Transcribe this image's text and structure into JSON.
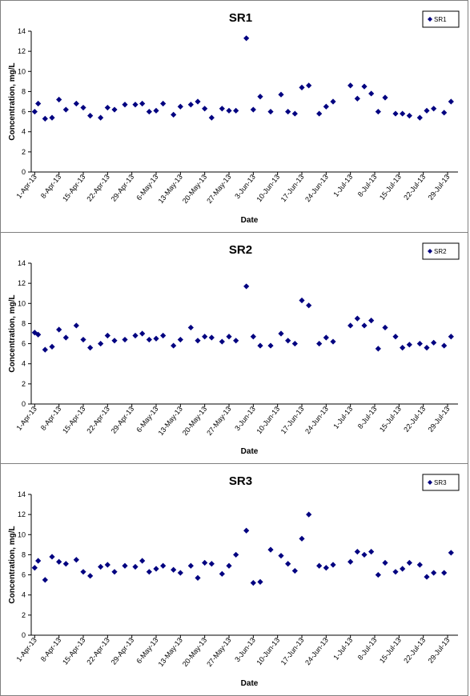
{
  "chart_data": [
    {
      "type": "scatter",
      "title": "SR1",
      "xlabel": "Date",
      "ylabel": "Concentration, mg/L",
      "ylim": [
        0,
        14
      ],
      "yticks": [
        0,
        2,
        4,
        6,
        8,
        10,
        12,
        14
      ],
      "x_tick_labels": [
        "1-Apr-13",
        "8-Apr-13",
        "15-Apr-13",
        "22-Apr-13",
        "29-Apr-13",
        "6-May-13",
        "13-May-13",
        "20-May-13",
        "27-May-13",
        "3-Jun-13",
        "10-Jun-13",
        "17-Jun-13",
        "24-Jun-13",
        "1-Jul-13",
        "8-Jul-13",
        "15-Jul-13",
        "22-Jul-13",
        "29-Jul-13"
      ],
      "grid": false,
      "legend_position": "top-right",
      "marker_color": "#000080",
      "series": [
        {
          "name": "SR1",
          "points": [
            [
              "2013-04-01",
              6.0
            ],
            [
              "2013-04-02",
              6.8
            ],
            [
              "2013-04-04",
              5.3
            ],
            [
              "2013-04-06",
              5.4
            ],
            [
              "2013-04-08",
              7.2
            ],
            [
              "2013-04-10",
              6.2
            ],
            [
              "2013-04-13",
              6.8
            ],
            [
              "2013-04-15",
              6.4
            ],
            [
              "2013-04-17",
              5.6
            ],
            [
              "2013-04-20",
              5.4
            ],
            [
              "2013-04-22",
              6.4
            ],
            [
              "2013-04-24",
              6.2
            ],
            [
              "2013-04-27",
              6.7
            ],
            [
              "2013-04-30",
              6.7
            ],
            [
              "2013-05-02",
              6.8
            ],
            [
              "2013-05-04",
              6.0
            ],
            [
              "2013-05-06",
              6.1
            ],
            [
              "2013-05-08",
              6.8
            ],
            [
              "2013-05-11",
              5.7
            ],
            [
              "2013-05-13",
              6.5
            ],
            [
              "2013-05-16",
              6.7
            ],
            [
              "2013-05-18",
              7.0
            ],
            [
              "2013-05-20",
              6.3
            ],
            [
              "2013-05-22",
              5.4
            ],
            [
              "2013-05-25",
              6.3
            ],
            [
              "2013-05-27",
              6.1
            ],
            [
              "2013-05-29",
              6.1
            ],
            [
              "2013-06-01",
              13.3
            ],
            [
              "2013-06-03",
              6.2
            ],
            [
              "2013-06-05",
              7.5
            ],
            [
              "2013-06-08",
              6.0
            ],
            [
              "2013-06-11",
              7.7
            ],
            [
              "2013-06-13",
              6.0
            ],
            [
              "2013-06-15",
              5.8
            ],
            [
              "2013-06-17",
              8.4
            ],
            [
              "2013-06-19",
              8.6
            ],
            [
              "2013-06-22",
              5.8
            ],
            [
              "2013-06-24",
              6.5
            ],
            [
              "2013-06-26",
              7.0
            ],
            [
              "2013-07-01",
              8.6
            ],
            [
              "2013-07-03",
              7.3
            ],
            [
              "2013-07-05",
              8.5
            ],
            [
              "2013-07-07",
              7.8
            ],
            [
              "2013-07-09",
              6.0
            ],
            [
              "2013-07-11",
              7.4
            ],
            [
              "2013-07-14",
              5.8
            ],
            [
              "2013-07-16",
              5.8
            ],
            [
              "2013-07-18",
              5.6
            ],
            [
              "2013-07-21",
              5.4
            ],
            [
              "2013-07-23",
              6.1
            ],
            [
              "2013-07-25",
              6.3
            ],
            [
              "2013-07-28",
              5.9
            ],
            [
              "2013-07-30",
              7.0
            ]
          ]
        }
      ]
    },
    {
      "type": "scatter",
      "title": "SR2",
      "xlabel": "Date",
      "ylabel": "Concentration, mg/L",
      "ylim": [
        0,
        14
      ],
      "yticks": [
        0,
        2,
        4,
        6,
        8,
        10,
        12,
        14
      ],
      "x_tick_labels": [
        "1-Apr-13",
        "8-Apr-13",
        "15-Apr-13",
        "22-Apr-13",
        "29-Apr-13",
        "6-May-13",
        "13-May-13",
        "20-May-13",
        "27-May-13",
        "3-Jun-13",
        "10-Jun-13",
        "17-Jun-13",
        "24-Jun-13",
        "1-Jul-13",
        "8-Jul-13",
        "15-Jul-13",
        "22-Jul-13",
        "29-Jul-13"
      ],
      "grid": false,
      "legend_position": "top-right",
      "marker_color": "#000080",
      "series": [
        {
          "name": "SR2",
          "points": [
            [
              "2013-04-01",
              7.1
            ],
            [
              "2013-04-02",
              6.9
            ],
            [
              "2013-04-04",
              5.4
            ],
            [
              "2013-04-06",
              5.7
            ],
            [
              "2013-04-08",
              7.4
            ],
            [
              "2013-04-10",
              6.6
            ],
            [
              "2013-04-13",
              7.8
            ],
            [
              "2013-04-15",
              6.4
            ],
            [
              "2013-04-17",
              5.6
            ],
            [
              "2013-04-20",
              6.0
            ],
            [
              "2013-04-22",
              6.8
            ],
            [
              "2013-04-24",
              6.3
            ],
            [
              "2013-04-27",
              6.4
            ],
            [
              "2013-04-30",
              6.8
            ],
            [
              "2013-05-02",
              7.0
            ],
            [
              "2013-05-04",
              6.4
            ],
            [
              "2013-05-06",
              6.5
            ],
            [
              "2013-05-08",
              6.8
            ],
            [
              "2013-05-11",
              5.8
            ],
            [
              "2013-05-13",
              6.4
            ],
            [
              "2013-05-16",
              7.6
            ],
            [
              "2013-05-18",
              6.3
            ],
            [
              "2013-05-20",
              6.7
            ],
            [
              "2013-05-22",
              6.6
            ],
            [
              "2013-05-25",
              6.2
            ],
            [
              "2013-05-27",
              6.7
            ],
            [
              "2013-05-29",
              6.3
            ],
            [
              "2013-06-01",
              11.7
            ],
            [
              "2013-06-03",
              6.7
            ],
            [
              "2013-06-05",
              5.8
            ],
            [
              "2013-06-08",
              5.8
            ],
            [
              "2013-06-11",
              7.0
            ],
            [
              "2013-06-13",
              6.3
            ],
            [
              "2013-06-15",
              6.0
            ],
            [
              "2013-06-17",
              10.3
            ],
            [
              "2013-06-19",
              9.8
            ],
            [
              "2013-06-22",
              6.0
            ],
            [
              "2013-06-24",
              6.6
            ],
            [
              "2013-06-26",
              6.2
            ],
            [
              "2013-07-01",
              7.8
            ],
            [
              "2013-07-03",
              8.5
            ],
            [
              "2013-07-05",
              7.8
            ],
            [
              "2013-07-07",
              8.3
            ],
            [
              "2013-07-09",
              5.5
            ],
            [
              "2013-07-11",
              7.6
            ],
            [
              "2013-07-14",
              6.7
            ],
            [
              "2013-07-16",
              5.6
            ],
            [
              "2013-07-18",
              5.9
            ],
            [
              "2013-07-21",
              6.0
            ],
            [
              "2013-07-23",
              5.6
            ],
            [
              "2013-07-25",
              6.1
            ],
            [
              "2013-07-28",
              5.8
            ],
            [
              "2013-07-30",
              6.7
            ]
          ]
        }
      ]
    },
    {
      "type": "scatter",
      "title": "SR3",
      "xlabel": "Date",
      "ylabel": "Concentration, mg/L",
      "ylim": [
        0,
        14
      ],
      "yticks": [
        0,
        2,
        4,
        6,
        8,
        10,
        12,
        14
      ],
      "x_tick_labels": [
        "1-Apr-13",
        "8-Apr-13",
        "15-Apr-13",
        "22-Apr-13",
        "29-Apr-13",
        "6-May-13",
        "13-May-13",
        "20-May-13",
        "27-May-13",
        "3-Jun-13",
        "10-Jun-13",
        "17-Jun-13",
        "24-Jun-13",
        "1-Jul-13",
        "8-Jul-13",
        "15-Jul-13",
        "22-Jul-13",
        "29-Jul-13"
      ],
      "grid": false,
      "legend_position": "top-right",
      "marker_color": "#000080",
      "series": [
        {
          "name": "SR3",
          "points": [
            [
              "2013-04-01",
              6.7
            ],
            [
              "2013-04-02",
              7.4
            ],
            [
              "2013-04-04",
              5.5
            ],
            [
              "2013-04-06",
              7.8
            ],
            [
              "2013-04-08",
              7.3
            ],
            [
              "2013-04-10",
              7.1
            ],
            [
              "2013-04-13",
              7.5
            ],
            [
              "2013-04-15",
              6.3
            ],
            [
              "2013-04-17",
              5.9
            ],
            [
              "2013-04-20",
              6.8
            ],
            [
              "2013-04-22",
              7.0
            ],
            [
              "2013-04-24",
              6.3
            ],
            [
              "2013-04-27",
              6.9
            ],
            [
              "2013-04-30",
              6.8
            ],
            [
              "2013-05-02",
              7.4
            ],
            [
              "2013-05-04",
              6.3
            ],
            [
              "2013-05-06",
              6.6
            ],
            [
              "2013-05-08",
              6.9
            ],
            [
              "2013-05-11",
              6.5
            ],
            [
              "2013-05-13",
              6.2
            ],
            [
              "2013-05-16",
              6.9
            ],
            [
              "2013-05-18",
              5.7
            ],
            [
              "2013-05-20",
              7.2
            ],
            [
              "2013-05-22",
              7.1
            ],
            [
              "2013-05-25",
              6.1
            ],
            [
              "2013-05-27",
              6.9
            ],
            [
              "2013-05-29",
              8.0
            ],
            [
              "2013-06-01",
              10.4
            ],
            [
              "2013-06-03",
              5.2
            ],
            [
              "2013-06-05",
              5.3
            ],
            [
              "2013-06-08",
              8.5
            ],
            [
              "2013-06-11",
              7.9
            ],
            [
              "2013-06-13",
              7.1
            ],
            [
              "2013-06-15",
              6.4
            ],
            [
              "2013-06-17",
              9.6
            ],
            [
              "2013-06-19",
              12.0
            ],
            [
              "2013-06-22",
              6.9
            ],
            [
              "2013-06-24",
              6.7
            ],
            [
              "2013-06-26",
              7.0
            ],
            [
              "2013-07-01",
              7.3
            ],
            [
              "2013-07-03",
              8.3
            ],
            [
              "2013-07-05",
              8.0
            ],
            [
              "2013-07-07",
              8.3
            ],
            [
              "2013-07-09",
              6.0
            ],
            [
              "2013-07-11",
              7.2
            ],
            [
              "2013-07-14",
              6.3
            ],
            [
              "2013-07-16",
              6.6
            ],
            [
              "2013-07-18",
              7.2
            ],
            [
              "2013-07-21",
              7.0
            ],
            [
              "2013-07-23",
              5.8
            ],
            [
              "2013-07-25",
              6.2
            ],
            [
              "2013-07-28",
              6.2
            ],
            [
              "2013-07-30",
              8.2
            ]
          ]
        }
      ]
    }
  ]
}
